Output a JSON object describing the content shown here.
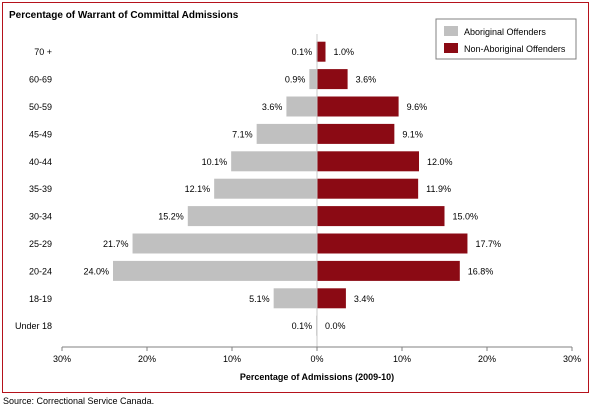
{
  "source": "Source:  Correctional Service Canada.",
  "chart_data": {
    "type": "bar",
    "orientation": "horizontal-diverging",
    "title": "Percentage of Warrant of Committal Admissions",
    "xlabel": "Percentage of Admissions (2009-10)",
    "ylabel": "",
    "xlim": [
      -30,
      30
    ],
    "xticks": [
      -30,
      -20,
      -10,
      0,
      10,
      20,
      30
    ],
    "xtick_labels": [
      "30%",
      "20%",
      "10%",
      "0%",
      "10%",
      "20%",
      "30%"
    ],
    "grid": false,
    "legend_position": "top-right",
    "categories": [
      "70 +",
      "60-69",
      "50-59",
      "45-49",
      "40-44",
      "35-39",
      "30-34",
      "25-29",
      "20-24",
      "18-19",
      "Under 18"
    ],
    "series": [
      {
        "name": "Aboriginal Offenders",
        "side": "left",
        "color": "#c0c0c0",
        "values": [
          0.1,
          0.9,
          3.6,
          7.1,
          10.1,
          12.1,
          15.2,
          21.7,
          24.0,
          5.1,
          0.1
        ],
        "labels": [
          "0.1%",
          "0.9%",
          "3.6%",
          "7.1%",
          "10.1%",
          "12.1%",
          "15.2%",
          "21.7%",
          "24.0%",
          "5.1%",
          "0.1%"
        ]
      },
      {
        "name": "Non-Aboriginal Offenders",
        "side": "right",
        "color": "#8b0a14",
        "values": [
          1.0,
          3.6,
          9.6,
          9.1,
          12.0,
          11.9,
          15.0,
          17.7,
          16.8,
          3.4,
          0.0
        ],
        "labels": [
          "1.0%",
          "3.6%",
          "9.6%",
          "9.1%",
          "12.0%",
          "11.9%",
          "15.0%",
          "17.7%",
          "16.8%",
          "3.4%",
          "0.0%"
        ]
      }
    ]
  }
}
